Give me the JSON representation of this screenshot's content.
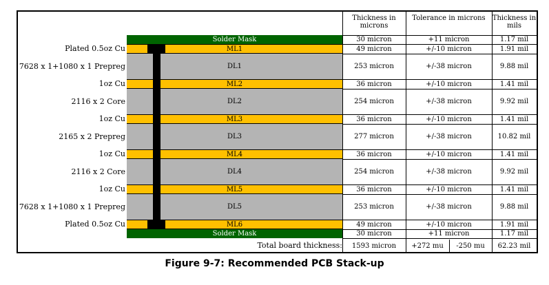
{
  "headers": {
    "thickness_microns": "Thickness in microns",
    "tolerance_microns": "Tolerance in microns",
    "thickness_mils": "Thickness in mils"
  },
  "colors": {
    "mask": "#006400",
    "copper": "#ffc000",
    "dielectric": "#b4b4b4",
    "via": "#000000"
  },
  "rows": [
    {
      "label": "",
      "layer": "Solder Mask",
      "kind": "mask",
      "thickness": "30 micron",
      "tolerance": "+11 micron",
      "mils": "1.17 mil"
    },
    {
      "label": "Plated 0.5oz Cu",
      "layer": "ML1",
      "kind": "copper",
      "thickness": "49 micron",
      "tolerance": "+/-10 micron",
      "mils": "1.91 mil"
    },
    {
      "label": "7628 x 1+1080 x 1 Prepreg",
      "layer": "DL1",
      "kind": "dielectric",
      "thickness": "253 micron",
      "tolerance": "+/-38 micron",
      "mils": "9.88 mil"
    },
    {
      "label": "1oz Cu",
      "layer": "ML2",
      "kind": "copper",
      "thickness": "36 micron",
      "tolerance": "+/-10 micron",
      "mils": "1.41 mil"
    },
    {
      "label": "2116 x 2 Core",
      "layer": "DL2",
      "kind": "dielectric",
      "thickness": "254 micron",
      "tolerance": "+/-38 micron",
      "mils": "9.92 mil"
    },
    {
      "label": "1oz Cu",
      "layer": "ML3",
      "kind": "copper",
      "thickness": "36 micron",
      "tolerance": "+/-10 micron",
      "mils": "1.41 mil"
    },
    {
      "label": "2165 x 2 Prepreg",
      "layer": "DL3",
      "kind": "dielectric",
      "thickness": "277 micron",
      "tolerance": "+/-38 micron",
      "mils": "10.82 mil"
    },
    {
      "label": "1oz Cu",
      "layer": "ML4",
      "kind": "copper",
      "thickness": "36 micron",
      "tolerance": "+/-10 micron",
      "mils": "1.41 mil"
    },
    {
      "label": "2116 x 2 Core",
      "layer": "DL4",
      "kind": "dielectric",
      "thickness": "254 micron",
      "tolerance": "+/-38 micron",
      "mils": "9.92 mil"
    },
    {
      "label": "1oz Cu",
      "layer": "ML5",
      "kind": "copper",
      "thickness": "36 micron",
      "tolerance": "+/-10 micron",
      "mils": "1.41 mil"
    },
    {
      "label": "7628 x 1+1080 x 1 Prepreg",
      "layer": "DL5",
      "kind": "dielectric",
      "thickness": "253 micron",
      "tolerance": "+/-38 micron",
      "mils": "9.88 mil"
    },
    {
      "label": "Plated 0.5oz Cu",
      "layer": "ML6",
      "kind": "copper",
      "thickness": "49 micron",
      "tolerance": "+/-10 micron",
      "mils": "1.91 mil"
    },
    {
      "label": "",
      "layer": "Solder Mask",
      "kind": "mask",
      "thickness": "30 micron",
      "tolerance": "+11 micron",
      "mils": "1.17 mil"
    }
  ],
  "total": {
    "label": "Total board thickness:",
    "thickness": "1593 micron",
    "tol_plus": "+272 mu",
    "tol_minus": "-250 mu",
    "mils": "62.23 mil"
  },
  "caption": "Figure 9-7: Recommended PCB Stack-up"
}
